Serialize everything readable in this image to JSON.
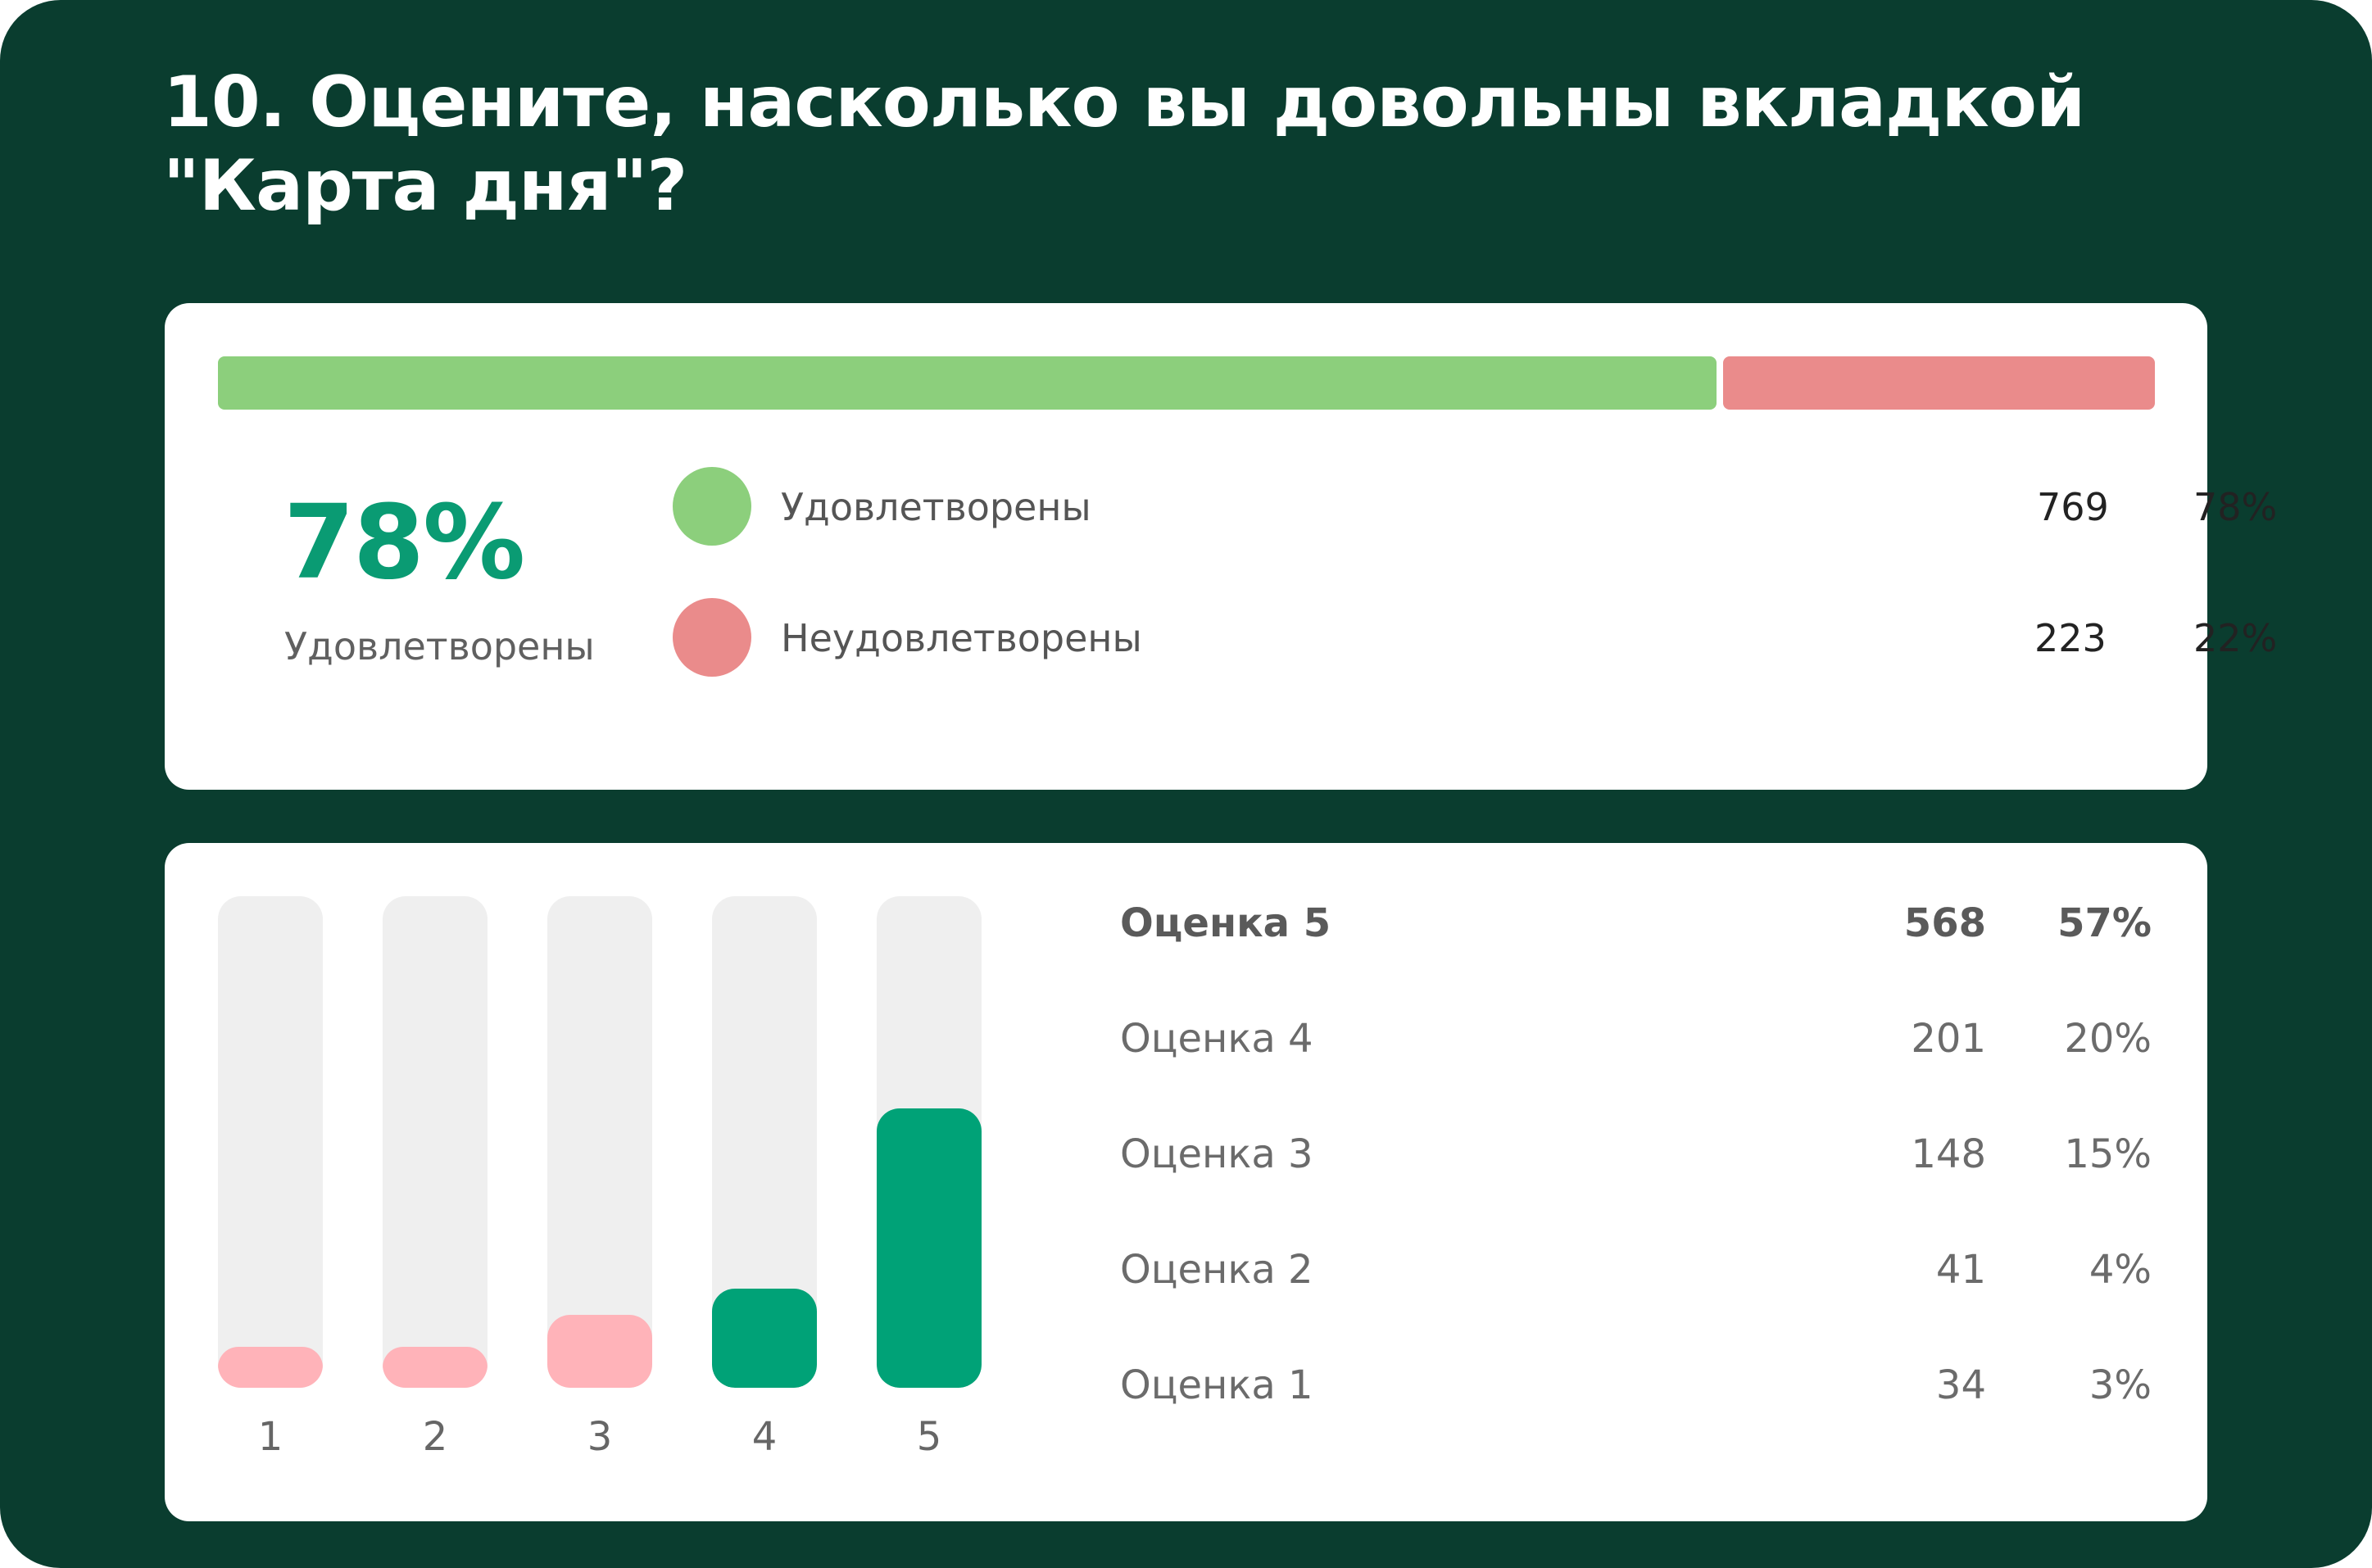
{
  "title": "10. Оцените, насколько вы довольны вкладкой \"Карта дня\"?",
  "summary": {
    "big_percent": "78%",
    "big_label": "Удовлетворены",
    "legend": [
      {
        "label": "Удовлетворены",
        "count": "769",
        "percent": "78%",
        "color": "#8ccf7c"
      },
      {
        "label": "Неудовлетворены",
        "count": "223",
        "percent": "22%",
        "color": "#ea8b8b"
      }
    ]
  },
  "scores": {
    "rows": [
      {
        "label": "Оценка 5",
        "count": "568",
        "percent": "57%"
      },
      {
        "label": "Оценка 4",
        "count": "201",
        "percent": "20%"
      },
      {
        "label": "Оценка 3",
        "count": "148",
        "percent": "15%"
      },
      {
        "label": "Оценка 2",
        "count": "41",
        "percent": "4%"
      },
      {
        "label": "Оценка 1",
        "count": "34",
        "percent": "3%"
      }
    ]
  },
  "chart_data": [
    {
      "type": "bar",
      "orientation": "horizontal-stacked",
      "categories": [
        "Удовлетворены",
        "Неудовлетворены"
      ],
      "values": [
        769,
        223
      ],
      "percents": [
        78,
        22
      ],
      "colors": [
        "#8ccf7c",
        "#ea8b8b"
      ]
    },
    {
      "type": "bar",
      "categories": [
        "1",
        "2",
        "3",
        "4",
        "5"
      ],
      "values": [
        34,
        41,
        148,
        201,
        568
      ],
      "percents": [
        3,
        4,
        15,
        20,
        57
      ],
      "colors": [
        "#ffb3b9",
        "#ffb3b9",
        "#ffb3b9",
        "#00a277",
        "#00a277"
      ],
      "track_color": "#efefef",
      "ylim": [
        0,
        1000
      ]
    }
  ]
}
